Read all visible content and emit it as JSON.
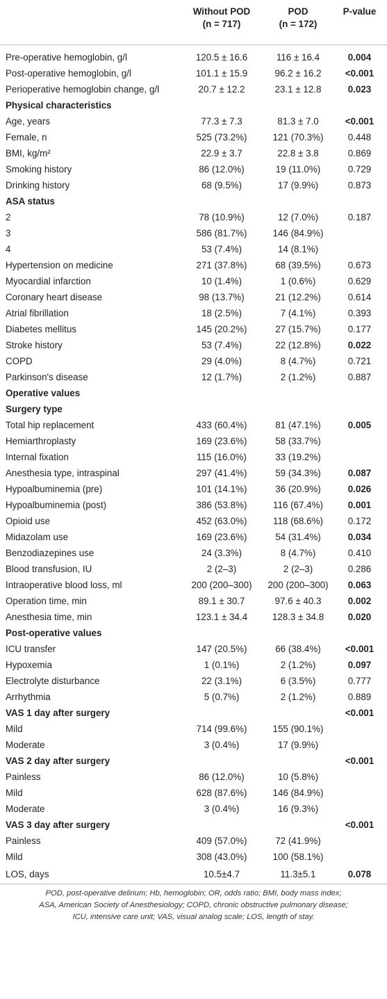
{
  "header": {
    "without": [
      "Without POD",
      "(n = 717)"
    ],
    "pod": [
      "POD",
      "(n = 172)"
    ],
    "p": "P-value"
  },
  "rows": [
    {
      "label": "Pre-operative hemoglobin, g/l",
      "without": "120.5 ± 16.6",
      "pod": "116 ± 16.4",
      "p": "0.004",
      "p_bold": true
    },
    {
      "label": "Post-operative hemoglobin, g/l",
      "without": "101.1 ± 15.9",
      "pod": "96.2 ± 16.2",
      "p": "<0.001",
      "p_bold": true
    },
    {
      "label": "Perioperative hemoglobin change, g/l",
      "without": "20.7 ± 12.2",
      "pod": "23.1 ± 12.8",
      "p": "0.023",
      "p_bold": true
    },
    {
      "label": "Physical characteristics",
      "section": true
    },
    {
      "label": "Age, years",
      "without": "77.3 ± 7.3",
      "pod": "81.3 ± 7.0",
      "p": "<0.001",
      "p_bold": true
    },
    {
      "label": "Female, n",
      "without": "525 (73.2%)",
      "pod": "121 (70.3%)",
      "p": "0.448"
    },
    {
      "label": "BMI, kg/m²",
      "without": "22.9 ± 3.7",
      "pod": "22.8 ± 3.8",
      "p": "0.869"
    },
    {
      "label": "Smoking history",
      "without": "86 (12.0%)",
      "pod": "19 (11.0%)",
      "p": "0.729"
    },
    {
      "label": "Drinking history",
      "without": "68 (9.5%)",
      "pod": "17 (9.9%)",
      "p": "0.873"
    },
    {
      "label": "ASA status",
      "section": true
    },
    {
      "label": "2",
      "without": "78 (10.9%)",
      "pod": "12 (7.0%)",
      "p": "0.187"
    },
    {
      "label": "3",
      "without": "586 (81.7%)",
      "pod": "146 (84.9%)"
    },
    {
      "label": "4",
      "without": "53 (7.4%)",
      "pod": "14 (8.1%)"
    },
    {
      "label": "Hypertension on medicine",
      "without": "271 (37.8%)",
      "pod": "68 (39.5%)",
      "p": "0.673"
    },
    {
      "label": "Myocardial infarction",
      "without": "10 (1.4%)",
      "pod": "1 (0.6%)",
      "p": "0.629"
    },
    {
      "label": "Coronary heart disease",
      "without": "98 (13.7%)",
      "pod": "21 (12.2%)",
      "p": "0.614"
    },
    {
      "label": "Atrial fibrillation",
      "without": "18 (2.5%)",
      "pod": "7 (4.1%)",
      "p": "0.393"
    },
    {
      "label": "Diabetes mellitus",
      "without": "145 (20.2%)",
      "pod": "27 (15.7%)",
      "p": "0.177"
    },
    {
      "label": "Stroke history",
      "without": "53 (7.4%)",
      "pod": "22 (12.8%)",
      "p": "0.022",
      "p_bold": true
    },
    {
      "label": "COPD",
      "without": "29 (4.0%)",
      "pod": "8 (4.7%)",
      "p": "0.721"
    },
    {
      "label": "Parkinson's disease",
      "without": "12 (1.7%)",
      "pod": "2 (1.2%)",
      "p": "0.887"
    },
    {
      "label": "Operative values",
      "section": true
    },
    {
      "label": "Surgery type",
      "section": true
    },
    {
      "label": "Total hip replacement",
      "without": "433 (60.4%)",
      "pod": "81 (47.1%)",
      "p": "0.005",
      "p_bold": true
    },
    {
      "label": "Hemiarthroplasty",
      "without": "169 (23.6%)",
      "pod": "58 (33.7%)"
    },
    {
      "label": "Internal fixation",
      "without": "115 (16.0%)",
      "pod": "33 (19.2%)"
    },
    {
      "label": "Anesthesia type, intraspinal",
      "without": "297 (41.4%)",
      "pod": "59 (34.3%)",
      "p": "0.087",
      "p_bold": true
    },
    {
      "label": "Hypoalbuminemia (pre)",
      "without": "101 (14.1%)",
      "pod": "36 (20.9%)",
      "p": "0.026",
      "p_bold": true
    },
    {
      "label": "Hypoalbuminemia (post)",
      "without": "386 (53.8%)",
      "pod": "116 (67.4%)",
      "p": "0.001",
      "p_bold": true
    },
    {
      "label": "Opioid use",
      "without": "452 (63.0%)",
      "pod": "118 (68.6%)",
      "p": "0.172"
    },
    {
      "label": "Midazolam use",
      "without": "169 (23.6%)",
      "pod": "54 (31.4%)",
      "p": "0.034",
      "p_bold": true
    },
    {
      "label": "Benzodiazepines use",
      "without": "24 (3.3%)",
      "pod": "8 (4.7%)",
      "p": "0.410"
    },
    {
      "label": "Blood transfusion, IU",
      "without": "2 (2–3)",
      "pod": "2 (2–3)",
      "p": "0.286"
    },
    {
      "label": "Intraoperative blood loss, ml",
      "without": "200 (200–300)",
      "pod": "200 (200–300)",
      "p": "0.063",
      "p_bold": true
    },
    {
      "label": "Operation time, min",
      "without": "89.1 ± 30.7",
      "pod": "97.6 ± 40.3",
      "p": "0.002",
      "p_bold": true
    },
    {
      "label": "Anesthesia time, min",
      "without": "123.1 ± 34.4",
      "pod": "128.3 ± 34.8",
      "p": "0.020",
      "p_bold": true
    },
    {
      "label": "Post-operative values",
      "section": true
    },
    {
      "label": "ICU transfer",
      "without": "147 (20.5%)",
      "pod": "66 (38.4%)",
      "p": "<0.001",
      "p_bold": true
    },
    {
      "label": "Hypoxemia",
      "without": "1 (0.1%)",
      "pod": "2 (1.2%)",
      "p": "0.097",
      "p_bold": true
    },
    {
      "label": "Electrolyte disturbance",
      "without": "22 (3.1%)",
      "pod": "6 (3.5%)",
      "p": "0.777"
    },
    {
      "label": "Arrhythmia",
      "without": "5 (0.7%)",
      "pod": "2 (1.2%)",
      "p": "0.889"
    },
    {
      "label": "VAS 1 day after surgery",
      "section": true,
      "p": "<0.001",
      "p_bold": true
    },
    {
      "label": "Mild",
      "without": "714 (99.6%)",
      "pod": "155 (90.1%)"
    },
    {
      "label": "Moderate",
      "without": "3 (0.4%)",
      "pod": "17 (9.9%)"
    },
    {
      "label": "VAS 2 day after surgery",
      "section": true,
      "p": "<0.001",
      "p_bold": true
    },
    {
      "label": "Painless",
      "without": "86 (12.0%)",
      "pod": "10 (5.8%)"
    },
    {
      "label": "Mild",
      "without": "628 (87.6%)",
      "pod": "146 (84.9%)"
    },
    {
      "label": "Moderate",
      "without": "3 (0.4%)",
      "pod": "16 (9.3%)"
    },
    {
      "label": "VAS 3 day after surgery",
      "section": true,
      "p": "<0.001",
      "p_bold": true
    },
    {
      "label": "Painless",
      "without": "409 (57.0%)",
      "pod": "72 (41.9%)"
    },
    {
      "label": "Mild",
      "without": "308 (43.0%)",
      "pod": "100 (58.1%)"
    },
    {
      "label": "LOS, days",
      "without": "10.5±4.7",
      "pod": "11.3±5.1",
      "p": "0.078",
      "p_bold": true
    }
  ],
  "footnote": [
    "POD, post-operative delirium; Hb, hemoglobin; OR, odds ratio; BMI, body mass index;",
    "ASA, American Society of Anesthesiology; COPD, chronic obstructive pulmonary disease;",
    "ICU, intensive care unit; VAS, visual analog scale; LOS, length of stay."
  ]
}
